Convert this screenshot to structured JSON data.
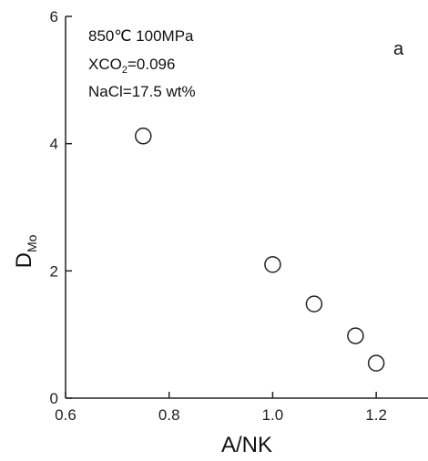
{
  "chart_data": {
    "type": "scatter",
    "points": [
      {
        "x": 0.75,
        "y": 4.12
      },
      {
        "x": 1.0,
        "y": 2.1
      },
      {
        "x": 1.08,
        "y": 1.48
      },
      {
        "x": 1.16,
        "y": 0.98
      },
      {
        "x": 1.2,
        "y": 0.55
      }
    ],
    "xlabel": "A/NK",
    "ylabel": {
      "main": "D",
      "sub": "Mo"
    },
    "xlim": [
      0.6,
      1.3
    ],
    "ylim": [
      0,
      6
    ],
    "xticks": [
      0.6,
      0.8,
      1.0,
      1.2
    ],
    "xtick_labels": [
      "0.6",
      "0.8",
      "1.0",
      "1.2"
    ],
    "yticks": [
      0,
      2,
      4,
      6
    ],
    "ytick_labels": [
      "0",
      "2",
      "4",
      "6"
    ],
    "annotations": {
      "line1": "850℃ 100MPa",
      "line2_pre": "XCO",
      "line2_sub": "2",
      "line2_post": "=0.096",
      "line3": "NaCl=17.5 wt%"
    },
    "panel_label": "a",
    "marker": "open-circle",
    "grid": false,
    "legend": "none"
  }
}
